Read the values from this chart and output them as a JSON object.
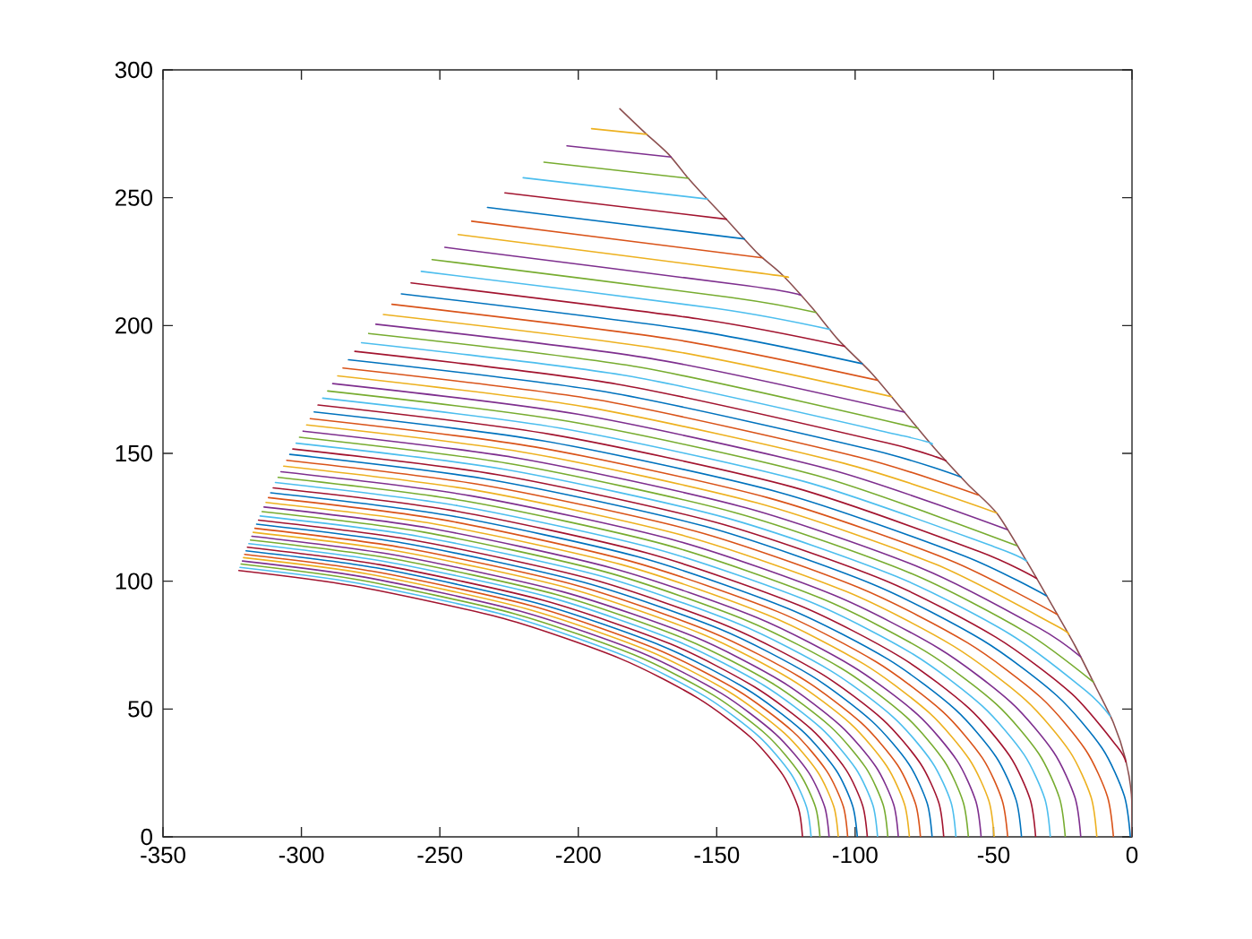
{
  "chart_data": {
    "type": "line",
    "xlim": [
      -350,
      0
    ],
    "ylim": [
      0,
      300
    ],
    "xticks": [
      -350,
      -300,
      -250,
      -200,
      -150,
      -100,
      -50,
      0
    ],
    "yticks": [
      0,
      50,
      100,
      150,
      200,
      250,
      300
    ],
    "series": [
      {
        "color": "#8c5050",
        "x": [
          -185,
          -176,
          -167.4,
          -160.9,
          -154.4,
          -146.9,
          -135,
          -126.4,
          -115.6,
          -105.9,
          -94,
          -82.2,
          -71.4,
          -59.5,
          -48.7,
          -38,
          -29.3,
          -20.7,
          -13.1,
          -6.7,
          -2.4,
          -0.2,
          0
        ],
        "values": [
          284.8,
          275.5,
          267,
          258.4,
          250.6,
          242,
          228,
          219.9,
          207,
          194.2,
          181.3,
          166.1,
          152.1,
          138.1,
          126.4,
          107.7,
          91.4,
          75,
          58.7,
          44.6,
          30.6,
          16.6,
          0
        ]
      },
      {
        "color": "#edb120",
        "x": [
          -195.2,
          -175.3
        ],
        "values": [
          277.0,
          274.8
        ]
      },
      {
        "color": "#7e2f8e",
        "x": [
          -204.1,
          -166.5
        ],
        "values": [
          270.3,
          265.9
        ]
      },
      {
        "color": "#77ac30",
        "x": [
          -212.4,
          -160.2
        ],
        "values": [
          263.9,
          257.6
        ]
      },
      {
        "color": "#4dbeee",
        "x": [
          -219.9,
          -153.4
        ],
        "values": [
          257.8,
          249.5
        ]
      },
      {
        "color": "#a2142f",
        "x": [
          -226.5,
          -146.5
        ],
        "values": [
          251.9,
          241.6
        ]
      },
      {
        "color": "#0072bd",
        "x": [
          -232.8,
          -140.0
        ],
        "values": [
          246.2,
          233.9
        ]
      },
      {
        "color": "#d95319",
        "x": [
          -238.5,
          -133.4
        ],
        "values": [
          240.8,
          226.5
        ]
      },
      {
        "color": "#edb120",
        "x": [
          -243.4,
          -133.6,
          -125.6
        ],
        "values": [
          235.6,
          220.4,
          219.0
        ]
      },
      {
        "color": "#7e2f8e",
        "x": [
          -248.2,
          -139.3,
          -119.7
        ],
        "values": [
          230.6,
          215.6,
          211.9
        ]
      },
      {
        "color": "#77ac30",
        "x": [
          -252.8,
          -144.9,
          -114.1
        ],
        "values": [
          225.8,
          211.0,
          205.1
        ]
      },
      {
        "color": "#4dbeee",
        "x": [
          -256.7,
          -150.2,
          -109.1
        ],
        "values": [
          221.2,
          206.7,
          198.5
        ]
      },
      {
        "color": "#a2142f",
        "x": [
          -260.4,
          -155.3,
          -103.8
        ],
        "values": [
          216.7,
          202.4,
          191.9
        ]
      },
      {
        "color": "#0072bd",
        "x": [
          -263.9,
          -160.2,
          -97.5
        ],
        "values": [
          212.4,
          198.4,
          185.1
        ]
      },
      {
        "color": "#d95319",
        "x": [
          -267.3,
          -165.0,
          -91.9
        ],
        "values": [
          208.3,
          194.5,
          178.6
        ]
      },
      {
        "color": "#edb120",
        "x": [
          -270.4,
          -169.5,
          -86.9
        ],
        "values": [
          204.3,
          190.7,
          172.2
        ]
      },
      {
        "color": "#7e2f8e",
        "x": [
          -273.1,
          -173.8,
          -82.2
        ],
        "values": [
          200.5,
          187.1,
          166.1
        ]
      },
      {
        "color": "#77ac30",
        "x": [
          -275.7,
          -178.0,
          -77.3
        ],
        "values": [
          196.9,
          183.7,
          159.8
        ]
      },
      {
        "color": "#4dbeee",
        "x": [
          -278.3,
          -182.1,
          -82.5,
          -72.6
        ],
        "values": [
          193.3,
          180.3,
          156.8,
          153.6
        ]
      },
      {
        "color": "#a2142f",
        "x": [
          -280.7,
          -186.0,
          -88.2,
          -67.2
        ],
        "values": [
          189.9,
          177.1,
          154.0,
          147.1
        ]
      },
      {
        "color": "#0072bd",
        "x": [
          -283.0,
          -189.7,
          -93.6,
          -61.7
        ],
        "values": [
          186.6,
          174.0,
          151.3,
          140.7
        ]
      },
      {
        "color": "#d95319",
        "x": [
          -285.0,
          -193.4,
          -98.9,
          -55.5
        ],
        "values": [
          183.4,
          171.0,
          148.6,
          133.7
        ]
      },
      {
        "color": "#edb120",
        "x": [
          -286.9,
          -196.9,
          -104.0,
          -48.9
        ],
        "values": [
          180.3,
          168.1,
          146.1,
          126.7
        ]
      },
      {
        "color": "#7e2f8e",
        "x": [
          -288.7,
          -200.2,
          -109.0,
          -45.1
        ],
        "values": [
          177.3,
          165.3,
          143.7,
          120.2
        ]
      },
      {
        "color": "#77ac30",
        "x": [
          -290.5,
          -203.5,
          -113.8,
          -41.6
        ],
        "values": [
          174.4,
          162.5,
          141.3,
          113.9
        ]
      },
      {
        "color": "#4dbeee",
        "x": [
          -292.3,
          -206.7,
          -118.4,
          -49.6,
          -38.1
        ],
        "values": [
          171.6,
          159.9,
          139.0,
          113.4,
          107.9
        ]
      },
      {
        "color": "#a2142f",
        "x": [
          -294.0,
          -209.7,
          -122.8,
          -55.2,
          -34.5
        ],
        "values": [
          168.9,
          157.4,
          136.9,
          111.6,
          101.1
        ]
      },
      {
        "color": "#0072bd",
        "x": [
          -295.4,
          -212.7,
          -127.2,
          -60.6,
          -30.9
        ],
        "values": [
          166.2,
          154.9,
          134.7,
          109.9,
          94.3
        ]
      },
      {
        "color": "#d95319",
        "x": [
          -296.8,
          -215.6,
          -131.4,
          -65.8,
          -27.0
        ],
        "values": [
          163.6,
          152.5,
          132.6,
          108.2,
          87.0
        ]
      },
      {
        "color": "#edb120",
        "x": [
          -298.1,
          -218.4,
          -135.4,
          -70.9,
          -27.9,
          -22.9
        ],
        "values": [
          161.1,
          150.2,
          130.6,
          106.6,
          82.9,
          79.2
        ]
      },
      {
        "color": "#7e2f8e",
        "x": [
          -299.4,
          -221.1,
          -139.4,
          -75.8,
          -33.4,
          -18.6
        ],
        "values": [
          158.7,
          148.0,
          128.7,
          105.0,
          81.6,
          70.5
        ]
      },
      {
        "color": "#77ac30",
        "x": [
          -300.7,
          -223.8,
          -143.3,
          -80.6,
          -38.9,
          -14.0
        ],
        "values": [
          156.3,
          145.8,
          126.8,
          103.4,
          80.4,
          60.6
        ]
      },
      {
        "color": "#4dbeee",
        "x": [
          -301.9,
          -226.3,
          -147.0,
          -85.2,
          -44.1,
          -16.3,
          -7.9
        ],
        "values": [
          154.0,
          143.7,
          124.9,
          101.9,
          79.3,
          56.8,
          47.2
        ]
      },
      {
        "color": "#a2142f",
        "x": [
          -303.1,
          -228.8,
          -150.6,
          -89.7,
          -49.2,
          -21.8,
          -5.3,
          -2.2
        ],
        "values": [
          151.7,
          141.6,
          123.1,
          100.5,
          78.1,
          56.0,
          35.2,
          29.3
        ]
      },
      {
        "color": "#0072bd",
        "x": [
          -304.2,
          -231.2,
          -154.1,
          -94.1,
          -54.1,
          -27.1,
          -10.8,
          -2.8,
          -0.6
        ],
        "values": [
          149.6,
          139.6,
          121.4,
          99.0,
          77.0,
          55.2,
          34.7,
          16.1,
          0
        ]
      },
      {
        "color": "#d95319",
        "x": [
          -305.3,
          -233.8,
          -157.8,
          -98.7,
          -59.4,
          -32.8,
          -16.8,
          -8.9,
          -6.7
        ],
        "values": [
          147.3,
          137.5,
          119.6,
          97.5,
          75.9,
          54.4,
          34.1,
          15.9,
          0
        ]
      },
      {
        "color": "#edb120",
        "x": [
          -306.4,
          -236.3,
          -161.5,
          -103.3,
          -64.6,
          -38.4,
          -22.6,
          -14.8,
          -12.7
        ],
        "values": [
          145.0,
          135.4,
          117.7,
          96.0,
          74.7,
          53.5,
          33.6,
          15.6,
          0
        ]
      },
      {
        "color": "#7e2f8e",
        "x": [
          -307.4,
          -238.8,
          -165.1,
          -107.8,
          -69.6,
          -43.8,
          -28.3,
          -20.6,
          -18.5
        ],
        "values": [
          142.8,
          133.4,
          116.0,
          94.6,
          73.6,
          52.7,
          33.1,
          15.4,
          0
        ]
      },
      {
        "color": "#77ac30",
        "x": [
          -308.4,
          -241.1,
          -168.6,
          -112.1,
          -74.5,
          -49.1,
          -33.7,
          -26.2,
          -24.1
        ],
        "values": [
          140.6,
          131.4,
          114.3,
          93.2,
          72.5,
          52.0,
          32.6,
          15.2,
          0
        ]
      },
      {
        "color": "#4dbeee",
        "x": [
          -309.4,
          -243.4,
          -171.9,
          -116.2,
          -79.1,
          -54.1,
          -39.0,
          -31.5,
          -29.5
        ],
        "values": [
          138.6,
          129.5,
          112.6,
          91.9,
          71.5,
          51.2,
          32.2,
          14.9,
          0
        ]
      },
      {
        "color": "#a2142f",
        "x": [
          -310.2,
          -245.7,
          -175.1,
          -120.3,
          -83.7,
          -59.1,
          -44.2,
          -36.8,
          -34.8
        ],
        "values": [
          136.5,
          127.7,
          111.0,
          90.6,
          70.4,
          50.5,
          31.7,
          14.7,
          0
        ]
      },
      {
        "color": "#0072bd",
        "x": [
          -311.1,
          -247.8,
          -178.3,
          -124.2,
          -88.2,
          -63.8,
          -49.1,
          -41.9,
          -39.9
        ],
        "values": [
          134.6,
          125.9,
          109.5,
          89.3,
          69.5,
          49.8,
          31.3,
          14.5,
          0
        ]
      },
      {
        "color": "#d95319",
        "x": [
          -311.9,
          -249.9,
          -181.4,
          -128.0,
          -92.5,
          -68.5,
          -54.0,
          -46.9,
          -44.9
        ],
        "values": [
          132.7,
          124.2,
          107.9,
          88.1,
          68.5,
          49.1,
          30.8,
          14.3,
          0
        ]
      },
      {
        "color": "#edb120",
        "x": [
          -312.8,
          -252.0,
          -184.4,
          -131.7,
          -96.7,
          -73.1,
          -58.8,
          -51.7,
          -49.8
        ],
        "values": [
          130.8,
          122.4,
          106.5,
          86.8,
          67.5,
          48.4,
          30.4,
          14.1,
          0
        ]
      },
      {
        "color": "#7e2f8e",
        "x": [
          -313.5,
          -254.0,
          -187.3,
          -135.3,
          -100.8,
          -77.4,
          -63.3,
          -56.4,
          -54.5
        ],
        "values": [
          129.0,
          120.8,
          105.0,
          85.7,
          66.6,
          47.8,
          30.0,
          13.9,
          0
        ]
      },
      {
        "color": "#77ac30",
        "x": [
          -314.2,
          -255.9,
          -190.1,
          -138.9,
          -104.8,
          -81.7,
          -67.8,
          -61.0,
          -59.1
        ],
        "values": [
          127.2,
          119.2,
          103.6,
          84.5,
          65.8,
          47.1,
          29.6,
          13.7,
          0
        ]
      },
      {
        "color": "#4dbeee",
        "x": [
          -314.9,
          -257.8,
          -192.9,
          -142.3,
          -108.7,
          -85.9,
          -72.2,
          -65.4,
          -63.6
        ],
        "values": [
          125.5,
          117.6,
          102.3,
          83.4,
          64.9,
          46.5,
          29.2,
          13.6,
          0
        ]
      },
      {
        "color": "#a2142f",
        "x": [
          -315.5,
          -259.7,
          -195.6,
          -145.7,
          -112.5,
          -90.0,
          -76.5,
          -69.8,
          -68.0
        ],
        "values": [
          123.9,
          116.1,
          100.9,
          82.3,
          64.0,
          45.9,
          28.8,
          13.4,
          0
        ]
      },
      {
        "color": "#0072bd",
        "x": [
          -316.2,
          -261.5,
          -198.2,
          -148.9,
          -116.1,
          -94.0,
          -80.6,
          -74.0,
          -72.2
        ],
        "values": [
          122.3,
          114.6,
          99.6,
          81.3,
          63.2,
          45.3,
          28.5,
          13.2,
          0
        ]
      },
      {
        "color": "#d95319",
        "x": [
          -316.8,
          -263.2,
          -200.8,
          -152.1,
          -119.8,
          -97.9,
          -84.7,
          -78.2,
          -76.4
        ],
        "values": [
          120.7,
          113.1,
          98.4,
          80.2,
          62.4,
          44.7,
          28.1,
          13.0,
          0
        ]
      },
      {
        "color": "#edb120",
        "x": [
          -317.4,
          -264.9,
          -203.2,
          -155.2,
          -123.2,
          -101.6,
          -88.6,
          -82.2,
          -80.4
        ],
        "values": [
          119.1,
          111.7,
          97.2,
          79.3,
          61.6,
          44.2,
          27.7,
          12.9,
          0
        ]
      },
      {
        "color": "#7e2f8e",
        "x": [
          -317.9,
          -266.6,
          -205.7,
          -158.2,
          -126.7,
          -105.4,
          -92.5,
          -86.1,
          -84.4
        ],
        "values": [
          117.6,
          110.3,
          95.9,
          78.3,
          60.9,
          43.6,
          27.4,
          12.7,
          0
        ]
      },
      {
        "color": "#77ac30",
        "x": [
          -318.4,
          -268.2,
          -208.0,
          -161.2,
          -130.0,
          -108.9,
          -96.2,
          -89.9,
          -88.2
        ],
        "values": [
          116.1,
          109.0,
          94.8,
          77.3,
          60.1,
          43.1,
          27.1,
          12.6,
          0
        ]
      },
      {
        "color": "#4dbeee",
        "x": [
          -319.0,
          -269.8,
          -210.3,
          -164.0,
          -133.2,
          -112.4,
          -99.8,
          -93.6,
          -91.9
        ],
        "values": [
          114.7,
          107.7,
          93.7,
          76.4,
          59.4,
          42.6,
          26.7,
          12.4,
          0
        ]
      },
      {
        "color": "#a2142f",
        "x": [
          -319.5,
          -271.4,
          -212.6,
          -166.8,
          -136.4,
          -115.8,
          -103.4,
          -97.3,
          -95.6
        ],
        "values": [
          113.3,
          106.4,
          92.5,
          75.5,
          58.7,
          42.1,
          26.4,
          12.3,
          0
        ]
      },
      {
        "color": "#0072bd",
        "x": [
          -320.0,
          -272.9,
          -214.8,
          -169.6,
          -139.5,
          -119.2,
          -106.9,
          -100.9,
          -99.2
        ],
        "values": [
          111.9,
          105.2,
          91.4,
          74.6,
          58.0,
          41.6,
          26.1,
          12.1,
          0
        ]
      },
      {
        "color": "#d95319",
        "x": [
          -320.5,
          -274.4,
          -217.0,
          -172.3,
          -142.5,
          -122.4,
          -110.3,
          -104.3,
          -102.7
        ],
        "values": [
          110.5,
          103.9,
          90.4,
          73.7,
          57.3,
          41.1,
          25.8,
          12.0,
          0
        ]
      },
      {
        "color": "#edb120",
        "x": [
          -320.9,
          -275.8,
          -219.0,
          -174.9,
          -145.5,
          -125.6,
          -113.6,
          -107.7,
          -106.1
        ],
        "values": [
          109.2,
          102.8,
          89.3,
          72.9,
          56.7,
          40.6,
          25.5,
          11.8,
          0
        ]
      },
      {
        "color": "#7e2f8e",
        "x": [
          -321.3,
          -277.2,
          -221.1,
          -177.4,
          -148.3,
          -128.7,
          -116.8,
          -111.0,
          -109.4
        ],
        "values": [
          107.9,
          101.6,
          88.3,
          72.1,
          56.1,
          40.2,
          25.2,
          11.7,
          0
        ]
      },
      {
        "color": "#77ac30",
        "x": [
          -321.8,
          -278.6,
          -223.1,
          -179.9,
          -151.2,
          -131.8,
          -120.1,
          -114.3,
          -112.7
        ],
        "values": [
          106.7,
          100.4,
          87.3,
          71.2,
          55.4,
          39.7,
          24.9,
          11.6,
          0
        ]
      },
      {
        "color": "#4dbeee",
        "x": [
          -322.2,
          -279.9,
          -225.1,
          -182.4,
          -154.0,
          -134.8,
          -123.2,
          -117.5,
          -115.9
        ],
        "values": [
          105.4,
          99.3,
          86.4,
          70.4,
          54.8,
          39.3,
          24.7,
          11.5,
          0
        ]
      },
      {
        "color": "#a2142f",
        "x": [
          -322.6,
          -281.3,
          -227.0,
          -184.8,
          -156.7,
          -137.7,
          -126.2,
          -120.5,
          -119.0
        ],
        "values": [
          104.2,
          98.2,
          85.4,
          69.7,
          54.2,
          38.9,
          24.4,
          11.3,
          0
        ]
      }
    ]
  }
}
